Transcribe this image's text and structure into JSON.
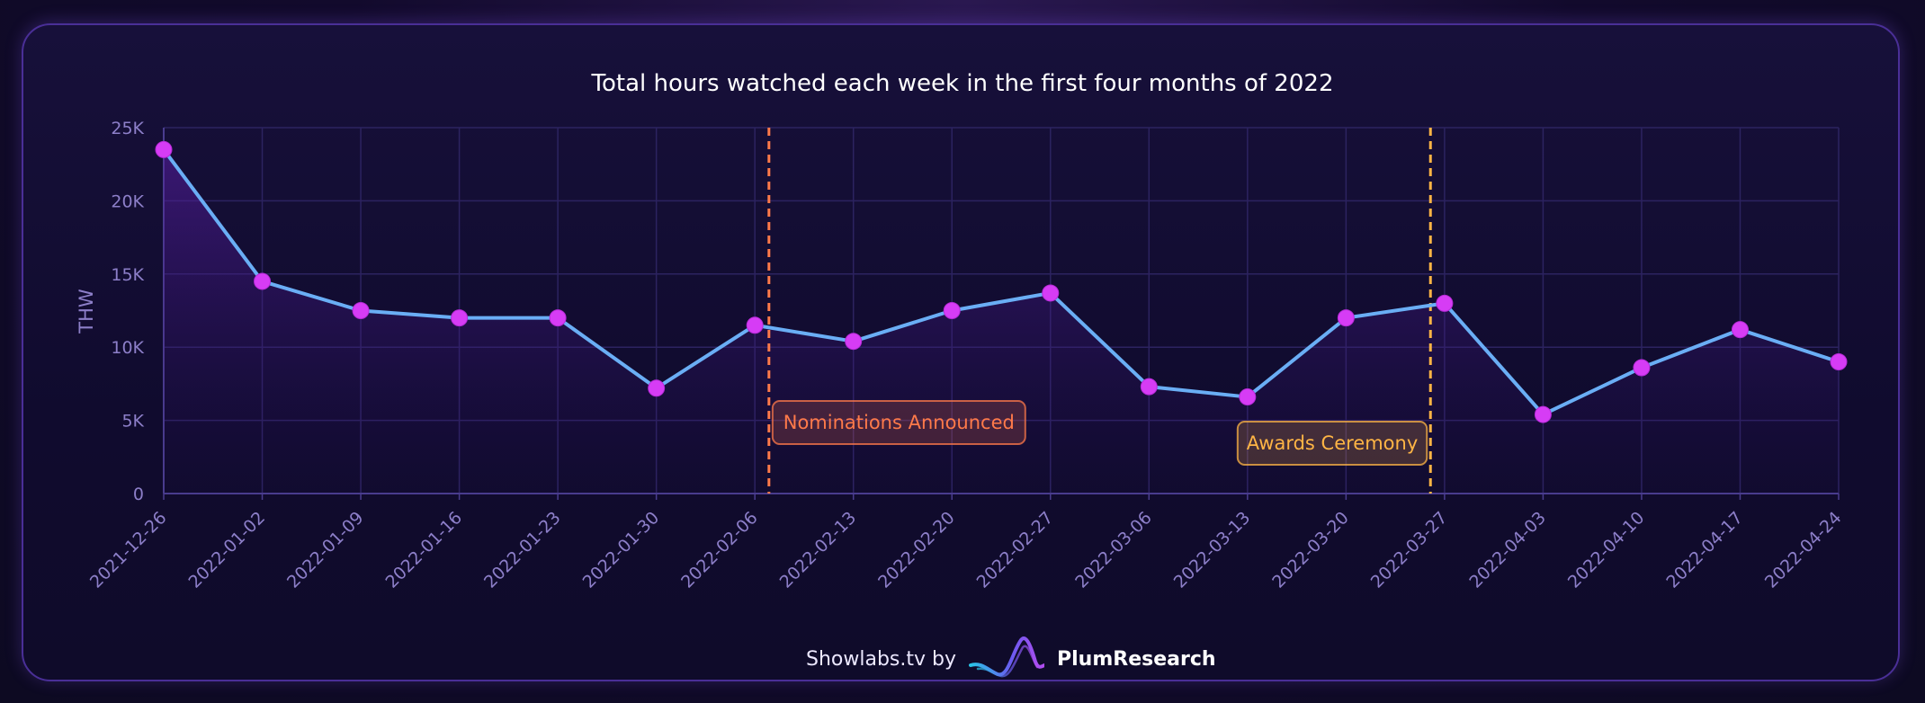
{
  "chart_data": {
    "type": "line",
    "title": "Total hours watched each week in the first four months of 2022",
    "ylabel": "THW",
    "xlabel": "",
    "ylim": [
      0,
      25000
    ],
    "yticks": [
      0,
      5000,
      10000,
      15000,
      20000,
      25000
    ],
    "ytick_labels": [
      "0",
      "5K",
      "10K",
      "15K",
      "20K",
      "25K"
    ],
    "grid": true,
    "categories": [
      "2021-12-26",
      "2022-01-02",
      "2022-01-09",
      "2022-01-16",
      "2022-01-23",
      "2022-01-30",
      "2022-02-06",
      "2022-02-13",
      "2022-02-20",
      "2022-02-27",
      "2022-03-06",
      "2022-03-13",
      "2022-03-20",
      "2022-03-27",
      "2022-04-03",
      "2022-04-10",
      "2022-04-17",
      "2022-04-24"
    ],
    "values": [
      23500,
      14500,
      12500,
      12000,
      12000,
      7200,
      11500,
      10400,
      12500,
      13700,
      7300,
      6600,
      12000,
      13000,
      5400,
      8600,
      11200,
      9000
    ],
    "annotations": [
      {
        "label": "Nominations Announced",
        "x": "2022-02-07",
        "color": "#ff7a4a"
      },
      {
        "label": "Awards Ceremony",
        "x": "2022-03-26",
        "color": "#ffb545"
      }
    ],
    "colors": {
      "line": "#6aaef5",
      "marker": "#d63cf5",
      "area": "#5a1fa6"
    }
  },
  "footer": {
    "credit": "Showlabs.tv by",
    "brand": "PlumResearch"
  }
}
